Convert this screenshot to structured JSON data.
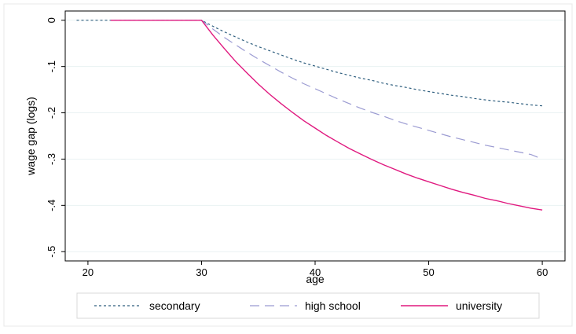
{
  "chart_data": {
    "type": "line",
    "xlabel": "age",
    "ylabel": "wage gap (logs)",
    "xlim": [
      18,
      62
    ],
    "ylim": [
      -0.52,
      0.02
    ],
    "x_ticks": [
      20,
      30,
      40,
      50,
      60
    ],
    "y_ticks": [
      0,
      -0.1,
      -0.2,
      -0.3,
      -0.4,
      -0.5
    ],
    "x_tick_labels": [
      "20",
      "30",
      "40",
      "50",
      "60"
    ],
    "y_tick_labels": [
      "0",
      "-.1",
      "-.2",
      "-.3",
      "-.4",
      "-.5"
    ],
    "grid": true,
    "legend_position": "bottom",
    "series": [
      {
        "name": "secondary",
        "color": "#2e5e7e",
        "style": "short-dash",
        "x": [
          19,
          20,
          22,
          24,
          26,
          28,
          30,
          31,
          32,
          33,
          34,
          35,
          36,
          37,
          38,
          39,
          40,
          41,
          42,
          43,
          44,
          45,
          46,
          47,
          48,
          49,
          50,
          51,
          52,
          53,
          54,
          55,
          56,
          57,
          58,
          59,
          60
        ],
        "y": [
          0,
          0,
          0,
          0,
          0,
          0,
          0,
          -0.013,
          -0.025,
          -0.036,
          -0.047,
          -0.057,
          -0.066,
          -0.075,
          -0.084,
          -0.092,
          -0.099,
          -0.106,
          -0.113,
          -0.119,
          -0.125,
          -0.13,
          -0.136,
          -0.141,
          -0.145,
          -0.15,
          -0.154,
          -0.158,
          -0.162,
          -0.165,
          -0.169,
          -0.172,
          -0.175,
          -0.177,
          -0.18,
          -0.183,
          -0.185
        ]
      },
      {
        "name": "high school",
        "color": "#9b9bd2",
        "style": "long-dash",
        "x": [
          22,
          24,
          26,
          28,
          30,
          31,
          32,
          33,
          34,
          35,
          36,
          37,
          38,
          39,
          40,
          41,
          42,
          43,
          44,
          45,
          46,
          47,
          48,
          49,
          50,
          51,
          52,
          53,
          54,
          55,
          56,
          57,
          58,
          59,
          60
        ],
        "y": [
          0,
          0,
          0,
          0,
          0,
          -0.019,
          -0.037,
          -0.053,
          -0.069,
          -0.084,
          -0.098,
          -0.112,
          -0.125,
          -0.137,
          -0.148,
          -0.159,
          -0.17,
          -0.18,
          -0.19,
          -0.199,
          -0.207,
          -0.216,
          -0.224,
          -0.231,
          -0.238,
          -0.245,
          -0.252,
          -0.258,
          -0.264,
          -0.27,
          -0.275,
          -0.28,
          -0.285,
          -0.29,
          -0.3
        ]
      },
      {
        "name": "university",
        "color": "#e0197f",
        "style": "solid",
        "x": [
          22,
          24,
          26,
          28,
          30,
          31,
          32,
          33,
          34,
          35,
          36,
          37,
          38,
          39,
          40,
          41,
          42,
          43,
          44,
          45,
          46,
          47,
          48,
          49,
          50,
          51,
          52,
          53,
          54,
          55,
          56,
          57,
          58,
          59,
          60
        ],
        "y": [
          0,
          0,
          0,
          0,
          0,
          -0.032,
          -0.061,
          -0.089,
          -0.114,
          -0.138,
          -0.16,
          -0.18,
          -0.199,
          -0.217,
          -0.233,
          -0.249,
          -0.263,
          -0.277,
          -0.289,
          -0.301,
          -0.312,
          -0.322,
          -0.332,
          -0.341,
          -0.349,
          -0.357,
          -0.365,
          -0.372,
          -0.378,
          -0.385,
          -0.39,
          -0.396,
          -0.401,
          -0.406,
          -0.41
        ]
      }
    ]
  }
}
